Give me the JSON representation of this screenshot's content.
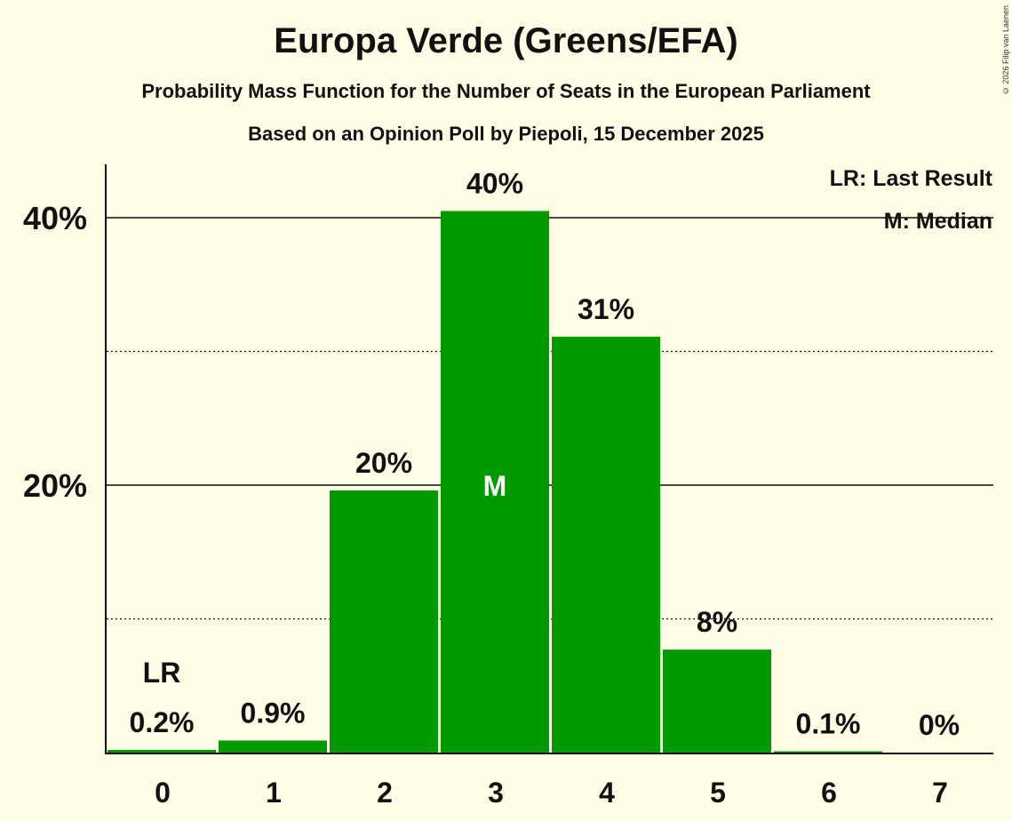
{
  "title": "Europa Verde (Greens/EFA)",
  "subtitle": "Probability Mass Function for the Number of Seats in the European Parliament",
  "subtitle2": "Based on an Opinion Poll by Piepoli, 15 December 2025",
  "copyright": "© 2026 Filip van Laenen",
  "legend": {
    "last_result": "LR: Last Result",
    "median": "M: Median"
  },
  "chart_data": {
    "type": "bar",
    "categories": [
      "0",
      "1",
      "2",
      "3",
      "4",
      "5",
      "6",
      "7"
    ],
    "values": [
      0.2,
      0.9,
      19.6,
      40.5,
      31.1,
      7.7,
      0.1,
      0
    ],
    "labels": [
      "0.2%",
      "0.9%",
      "20%",
      "40%",
      "31%",
      "8%",
      "0.1%",
      "0%"
    ],
    "ylim": [
      0,
      44
    ],
    "major_ticks": [
      20,
      40
    ],
    "major_tick_labels": [
      "20%",
      "40%"
    ],
    "minor_ticks": [
      10,
      30
    ],
    "last_result_index": 0,
    "last_result_label": "LR",
    "median_index": 3,
    "median_label": "M",
    "bar_color": "#009900",
    "background": "#fffde5"
  }
}
